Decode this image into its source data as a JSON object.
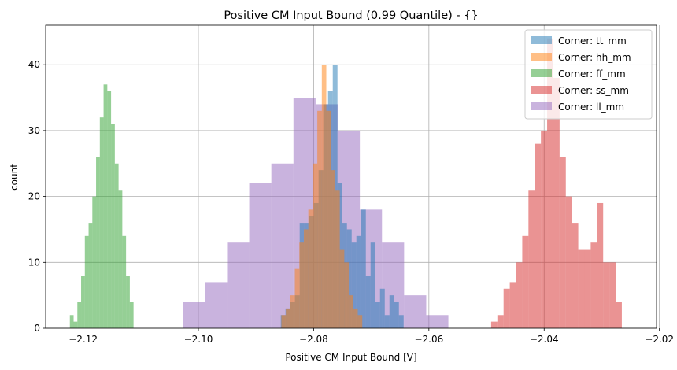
{
  "chart_data": {
    "type": "histogram",
    "title": "Positive CM Input Bound (0.99 Quantile) - {}",
    "xlabel": "Positive CM Input Bound [V]",
    "ylabel": "count",
    "xlim": [
      -2.1265,
      -2.0205
    ],
    "ylim": [
      0,
      46
    ],
    "xticks": [
      -2.12,
      -2.1,
      -2.08,
      -2.06,
      -2.04,
      -2.02
    ],
    "xtick_labels": [
      "−2.12",
      "−2.10",
      "−2.08",
      "−2.06",
      "−2.04",
      "−2.02"
    ],
    "yticks": [
      0,
      10,
      20,
      30,
      40
    ],
    "ytick_labels": [
      "0",
      "10",
      "20",
      "30",
      "40"
    ],
    "grid": true,
    "legend_position": "top-right",
    "series": [
      {
        "name": "Corner: ll_mm",
        "color": "#9467bd",
        "opacity": 0.5,
        "bin_start": -2.1027,
        "bin_width": 0.00384,
        "counts": [
          4,
          7,
          13,
          22,
          25,
          35,
          34,
          30,
          18,
          13,
          5,
          2
        ]
      },
      {
        "name": "Corner: tt_mm",
        "color": "#1f77b4",
        "opacity": 0.5,
        "bin_start": -2.0857,
        "bin_width": 0.00082,
        "counts": [
          2,
          3,
          4,
          5,
          16,
          16,
          17,
          19,
          24,
          34,
          36,
          40,
          22,
          16,
          15,
          13,
          14,
          18,
          8,
          13,
          4,
          6,
          2,
          5,
          4,
          2
        ]
      },
      {
        "name": "Corner: hh_mm",
        "color": "#ff7f0e",
        "opacity": 0.5,
        "bin_start": -2.0856,
        "bin_width": 0.00078,
        "counts": [
          2,
          3,
          5,
          9,
          13,
          15,
          18,
          25,
          33,
          40,
          33,
          24,
          21,
          12,
          10,
          5,
          3,
          2
        ]
      },
      {
        "name": "Corner: ff_mm",
        "color": "#2ca02c",
        "opacity": 0.5,
        "bin_start": -2.1223,
        "bin_width": 0.00065,
        "counts": [
          2,
          1,
          4,
          8,
          14,
          16,
          20,
          26,
          32,
          37,
          36,
          31,
          25,
          21,
          14,
          8,
          4
        ]
      },
      {
        "name": "Corner: ss_mm",
        "color": "#d62728",
        "opacity": 0.5,
        "bin_start": -2.0492,
        "bin_width": 0.00108,
        "counts": [
          1,
          2,
          6,
          7,
          10,
          14,
          21,
          28,
          30,
          44,
          38,
          26,
          20,
          16,
          12,
          12,
          13,
          19,
          10,
          10,
          4
        ]
      }
    ],
    "legend_order": [
      "Corner: tt_mm",
      "Corner: hh_mm",
      "Corner: ff_mm",
      "Corner: ss_mm",
      "Corner: ll_mm"
    ]
  }
}
